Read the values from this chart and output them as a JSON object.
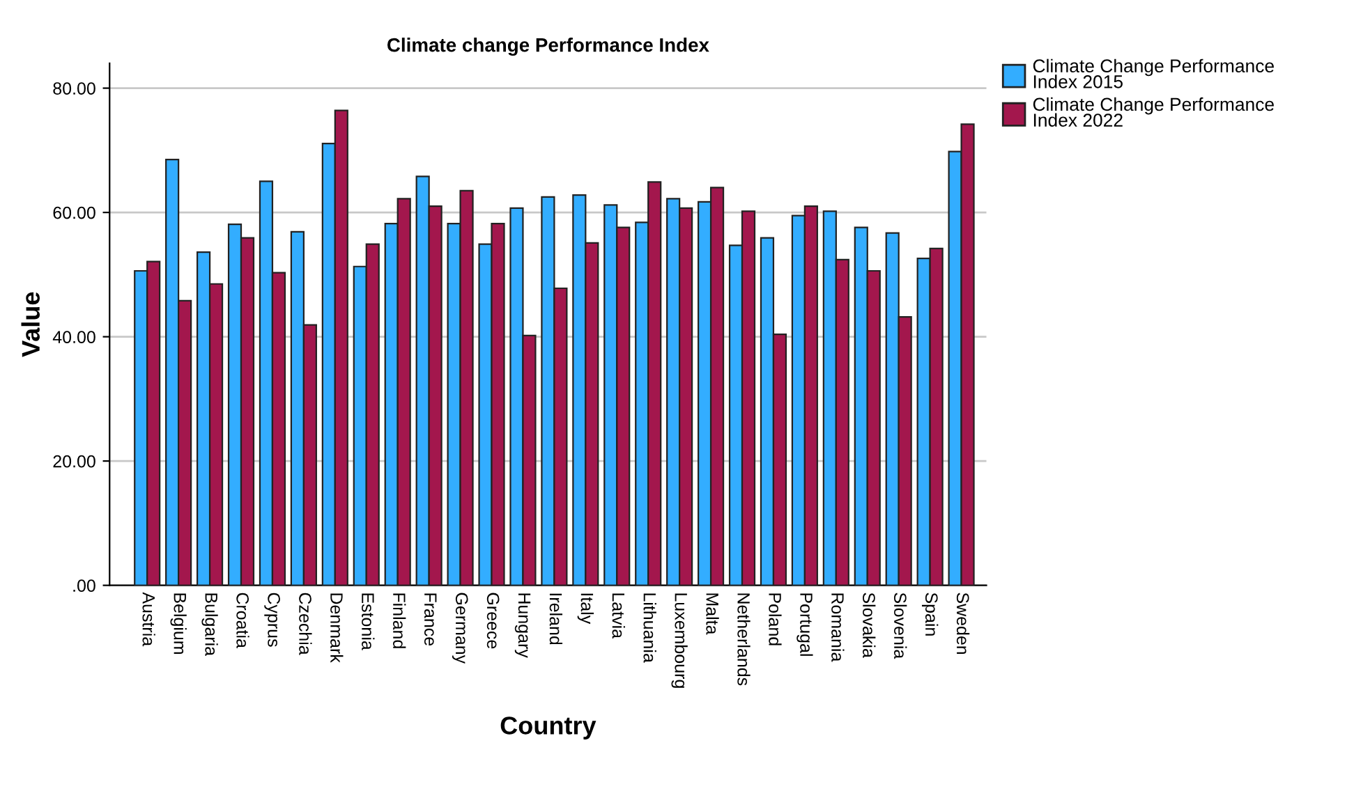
{
  "chart_data": {
    "type": "bar",
    "title": "Climate change Performance Index",
    "xlabel": "Country",
    "ylabel": "Value",
    "categories": [
      "Austria",
      "Belgium",
      "Bulgaria",
      "Croatia",
      "Cyprus",
      "Czechia",
      "Denmark",
      "Estonia",
      "Finland",
      "France",
      "Germany",
      "Greece",
      "Hungary",
      "Ireland",
      "Italy",
      "Latvia",
      "Lithuania",
      "Luxembourg",
      "Malta",
      "Netherlands",
      "Poland",
      "Portugal",
      "Romania",
      "Slovakia",
      "Slovenia",
      "Spain",
      "Sweden"
    ],
    "series": [
      {
        "name": "Climate Change Performance Index 2015",
        "color": "#33adff",
        "values": [
          50.6,
          68.5,
          53.6,
          58.1,
          65.0,
          56.9,
          71.1,
          51.3,
          58.2,
          65.8,
          58.2,
          54.9,
          60.7,
          62.5,
          62.8,
          61.2,
          58.4,
          62.2,
          61.7,
          54.7,
          55.9,
          59.5,
          60.2,
          57.6,
          56.7,
          52.6,
          69.8
        ]
      },
      {
        "name": "Climate Change Performance Index 2022",
        "color": "#a3174d",
        "values": [
          52.1,
          45.8,
          48.5,
          55.9,
          50.3,
          41.9,
          76.4,
          54.9,
          62.2,
          61.0,
          63.5,
          58.2,
          40.2,
          47.8,
          55.1,
          57.6,
          64.9,
          60.7,
          64.0,
          60.2,
          40.4,
          61.0,
          52.4,
          50.6,
          43.2,
          54.2,
          74.2
        ]
      }
    ],
    "ylim": [
      0,
      84
    ],
    "yticks": [
      {
        "value": 0,
        "label": ".00"
      },
      {
        "value": 20,
        "label": "20.00"
      },
      {
        "value": 40,
        "label": "40.00"
      },
      {
        "value": 60,
        "label": "60.00"
      },
      {
        "value": 80,
        "label": "80.00"
      }
    ],
    "grid": "y",
    "legend": "top right"
  }
}
